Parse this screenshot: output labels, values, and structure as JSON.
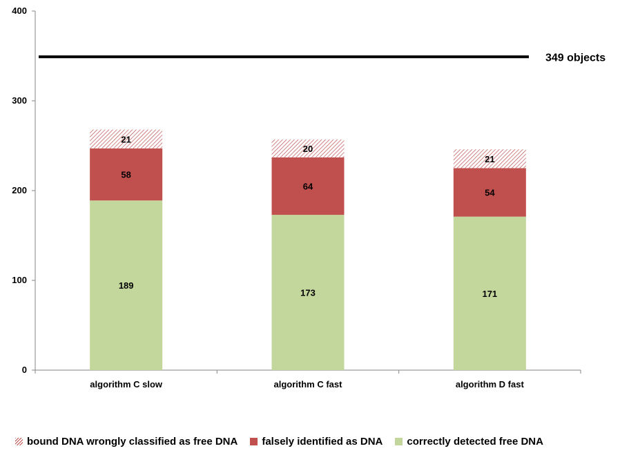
{
  "chart_data": {
    "type": "bar",
    "stacked": true,
    "categories": [
      "algorithm C slow",
      "algorithm C fast",
      "algorithm D fast"
    ],
    "series": [
      {
        "name": "correctly detected free DNA",
        "values": [
          189,
          173,
          171
        ],
        "color": "#c3d69b",
        "pattern": "solid"
      },
      {
        "name": "falsely identified as DNA",
        "values": [
          58,
          64,
          54
        ],
        "color": "#c0504d",
        "pattern": "solid"
      },
      {
        "name": "bound DNA wrongly classified as free DNA",
        "values": [
          21,
          20,
          21
        ],
        "color": "#c0504d",
        "pattern": "hatch"
      }
    ],
    "reference_line": {
      "value": 349,
      "label": "349 objects",
      "color": "#000000"
    },
    "ylim": [
      0,
      400
    ],
    "yticks": [
      0,
      100,
      200,
      300,
      400
    ],
    "grid": false,
    "legend_position": "bottom"
  },
  "legend": {
    "items": [
      {
        "label": "bound DNA wrongly classified as free DNA"
      },
      {
        "label": "falsely identified as DNA"
      },
      {
        "label": "correctly detected free DNA"
      }
    ]
  }
}
